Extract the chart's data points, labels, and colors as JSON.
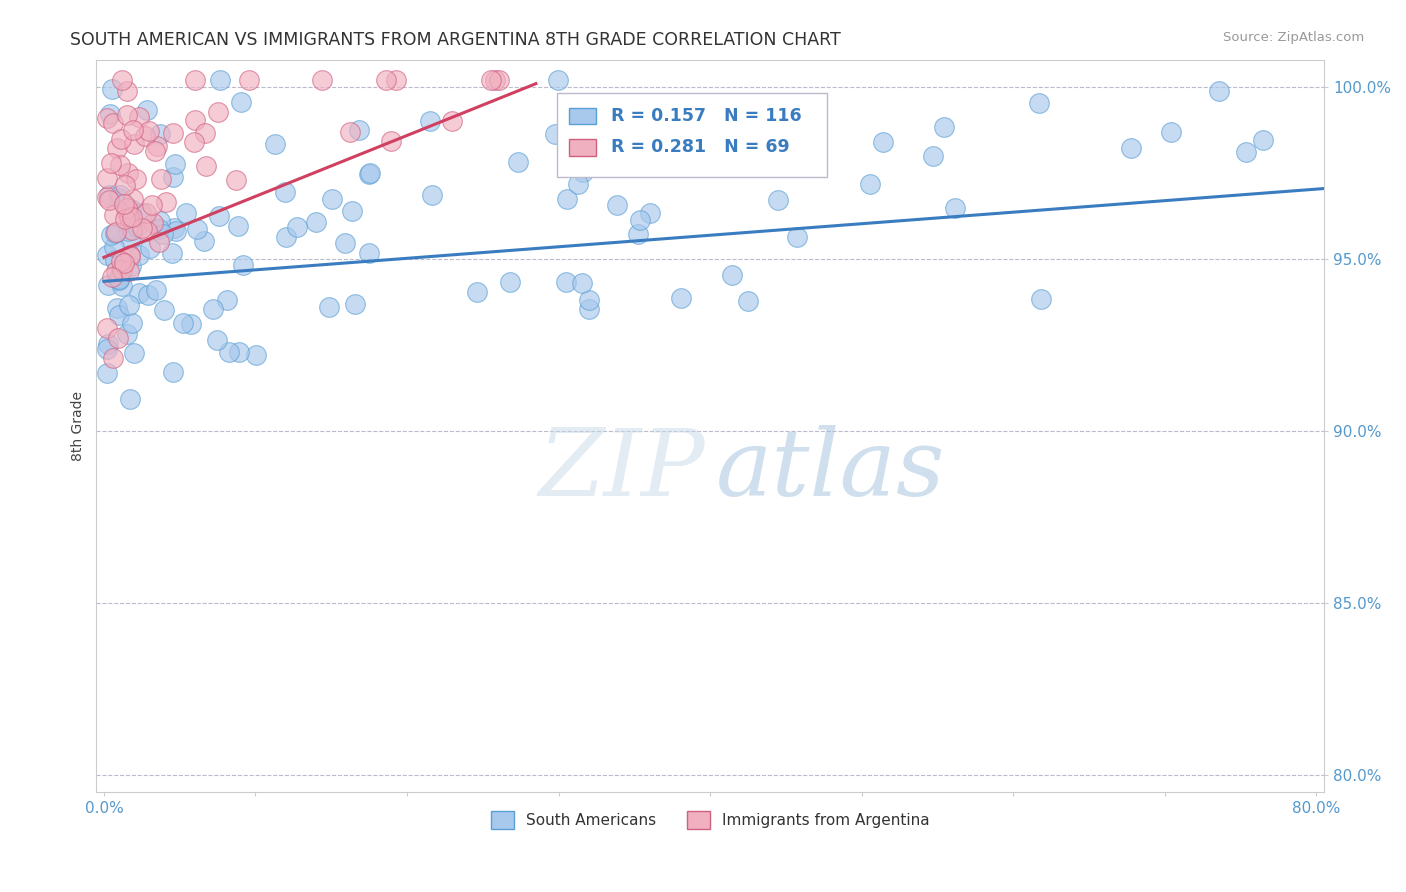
{
  "title": "SOUTH AMERICAN VS IMMIGRANTS FROM ARGENTINA 8TH GRADE CORRELATION CHART",
  "source_text": "Source: ZipAtlas.com",
  "ylabel": "8th Grade",
  "xlim": [
    -0.005,
    0.805
  ],
  "ylim": [
    0.795,
    1.008
  ],
  "xticks": [
    0.0,
    0.1,
    0.2,
    0.3,
    0.4,
    0.5,
    0.6,
    0.7,
    0.8
  ],
  "xticklabels": [
    "0.0%",
    "",
    "",
    "",
    "",
    "",
    "",
    "",
    "80.0%"
  ],
  "yticks": [
    0.8,
    0.85,
    0.9,
    0.95,
    1.0
  ],
  "yticklabels": [
    "80.0%",
    "85.0%",
    "90.0%",
    "95.0%",
    "100.0%"
  ],
  "blue_fill": "#A8C8EC",
  "blue_edge": "#5A9FD4",
  "pink_fill": "#F0B0C0",
  "pink_edge": "#D06080",
  "blue_line_color": "#3A7CC0",
  "pink_line_color": "#D04060",
  "R_blue": 0.157,
  "N_blue": 116,
  "R_pink": 0.281,
  "N_pink": 69,
  "watermark_zip": "ZIP",
  "watermark_atlas": "atlas",
  "blue_trend_x": [
    0.0,
    0.805
  ],
  "blue_trend_y": [
    0.9435,
    0.9705
  ],
  "pink_trend_x": [
    0.0,
    0.285
  ],
  "pink_trend_y": [
    0.9505,
    1.001
  ],
  "legend_R_color": "#3A7CC0",
  "legend_N_color": "#3A7CC0",
  "dashed_line_color": "#BBBBCC",
  "grid_color": "#DDDDEE"
}
